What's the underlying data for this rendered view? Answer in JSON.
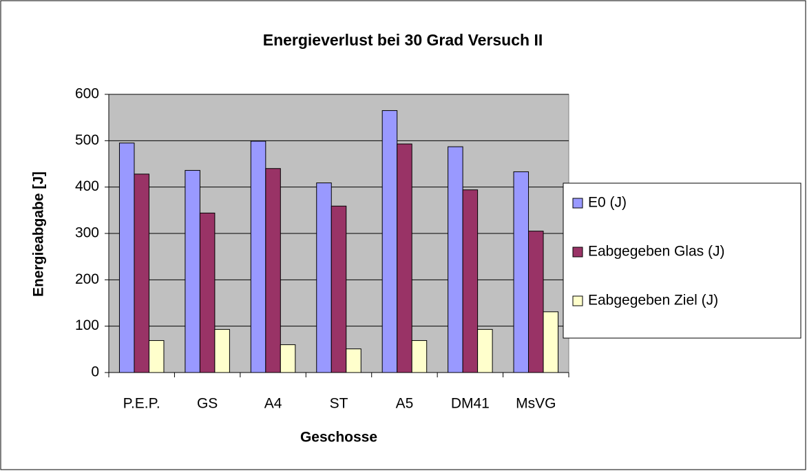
{
  "chart_data": {
    "type": "bar",
    "title": "Energieverlust bei 30 Grad Versuch II",
    "x_label": "Geschosse",
    "y_label": "Energieabgabe [J]",
    "categories": [
      "P.E.P.",
      "GS",
      "A4",
      "ST",
      "A5",
      "DM41",
      "MsVG"
    ],
    "series": [
      {
        "name": "E0 (J)",
        "color": "#9999ff",
        "values": [
          495,
          436,
          499,
          409,
          565,
          487,
          433
        ]
      },
      {
        "name": "Eabgegeben Glas (J)",
        "color": "#993366",
        "values": [
          428,
          344,
          440,
          359,
          493,
          394,
          305
        ]
      },
      {
        "name": "Eabgegeben Ziel (J)",
        "color": "#ffffcc",
        "values": [
          69,
          93,
          60,
          51,
          69,
          93,
          131
        ]
      }
    ],
    "ylim": [
      0,
      600
    ],
    "yticks": [
      0,
      100,
      200,
      300,
      400,
      500,
      600
    ],
    "grid": true,
    "legend": "right"
  }
}
